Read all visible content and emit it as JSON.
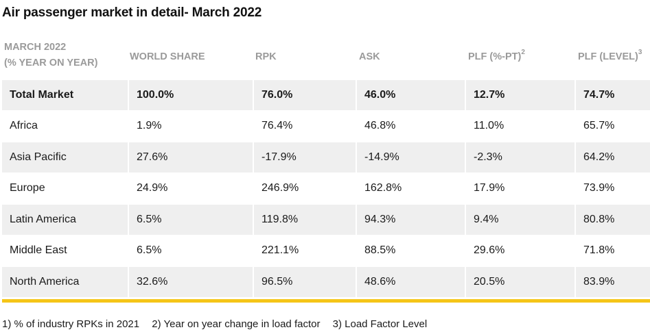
{
  "title": "Air passenger market in detail- March 2022",
  "headers": {
    "col0_line1": "MARCH 2022",
    "col0_line2": "(% YEAR ON YEAR)",
    "col1": "WORLD SHARE",
    "col2": "RPK",
    "col3": "ASK",
    "col4": "PLF (%-PT)",
    "col4_sup": "2",
    "col5": "PLF (LEVEL)",
    "col5_sup": "3"
  },
  "rows": [
    {
      "region": "Total Market",
      "world_share": "100.0%",
      "rpk": "76.0%",
      "ask": "46.0%",
      "plf_pt": "12.7%",
      "plf_level": "74.7%"
    },
    {
      "region": "Africa",
      "world_share": "1.9%",
      "rpk": "76.4%",
      "ask": "46.8%",
      "plf_pt": "11.0%",
      "plf_level": "65.7%"
    },
    {
      "region": "Asia Pacific",
      "world_share": "27.6%",
      "rpk": "-17.9%",
      "ask": "-14.9%",
      "plf_pt": "-2.3%",
      "plf_level": "64.2%"
    },
    {
      "region": "Europe",
      "world_share": "24.9%",
      "rpk": "246.9%",
      "ask": "162.8%",
      "plf_pt": "17.9%",
      "plf_level": "73.9%"
    },
    {
      "region": "Latin America",
      "world_share": "6.5%",
      "rpk": "119.8%",
      "ask": "94.3%",
      "plf_pt": "9.4%",
      "plf_level": "80.8%"
    },
    {
      "region": "Middle East",
      "world_share": "6.5%",
      "rpk": "221.1%",
      "ask": "88.5%",
      "plf_pt": "29.6%",
      "plf_level": "71.8%"
    },
    {
      "region": "North America",
      "world_share": "32.6%",
      "rpk": "96.5%",
      "ask": "48.6%",
      "plf_pt": "20.5%",
      "plf_level": "83.9%"
    }
  ],
  "footnotes": [
    "1) % of industry RPKs in 2021",
    "2) Year on year change in load factor",
    "3) Load Factor Level"
  ],
  "colors": {
    "accent_bar": "#f5c518",
    "row_shade": "#efefef",
    "header_text": "#9a9a9a"
  }
}
